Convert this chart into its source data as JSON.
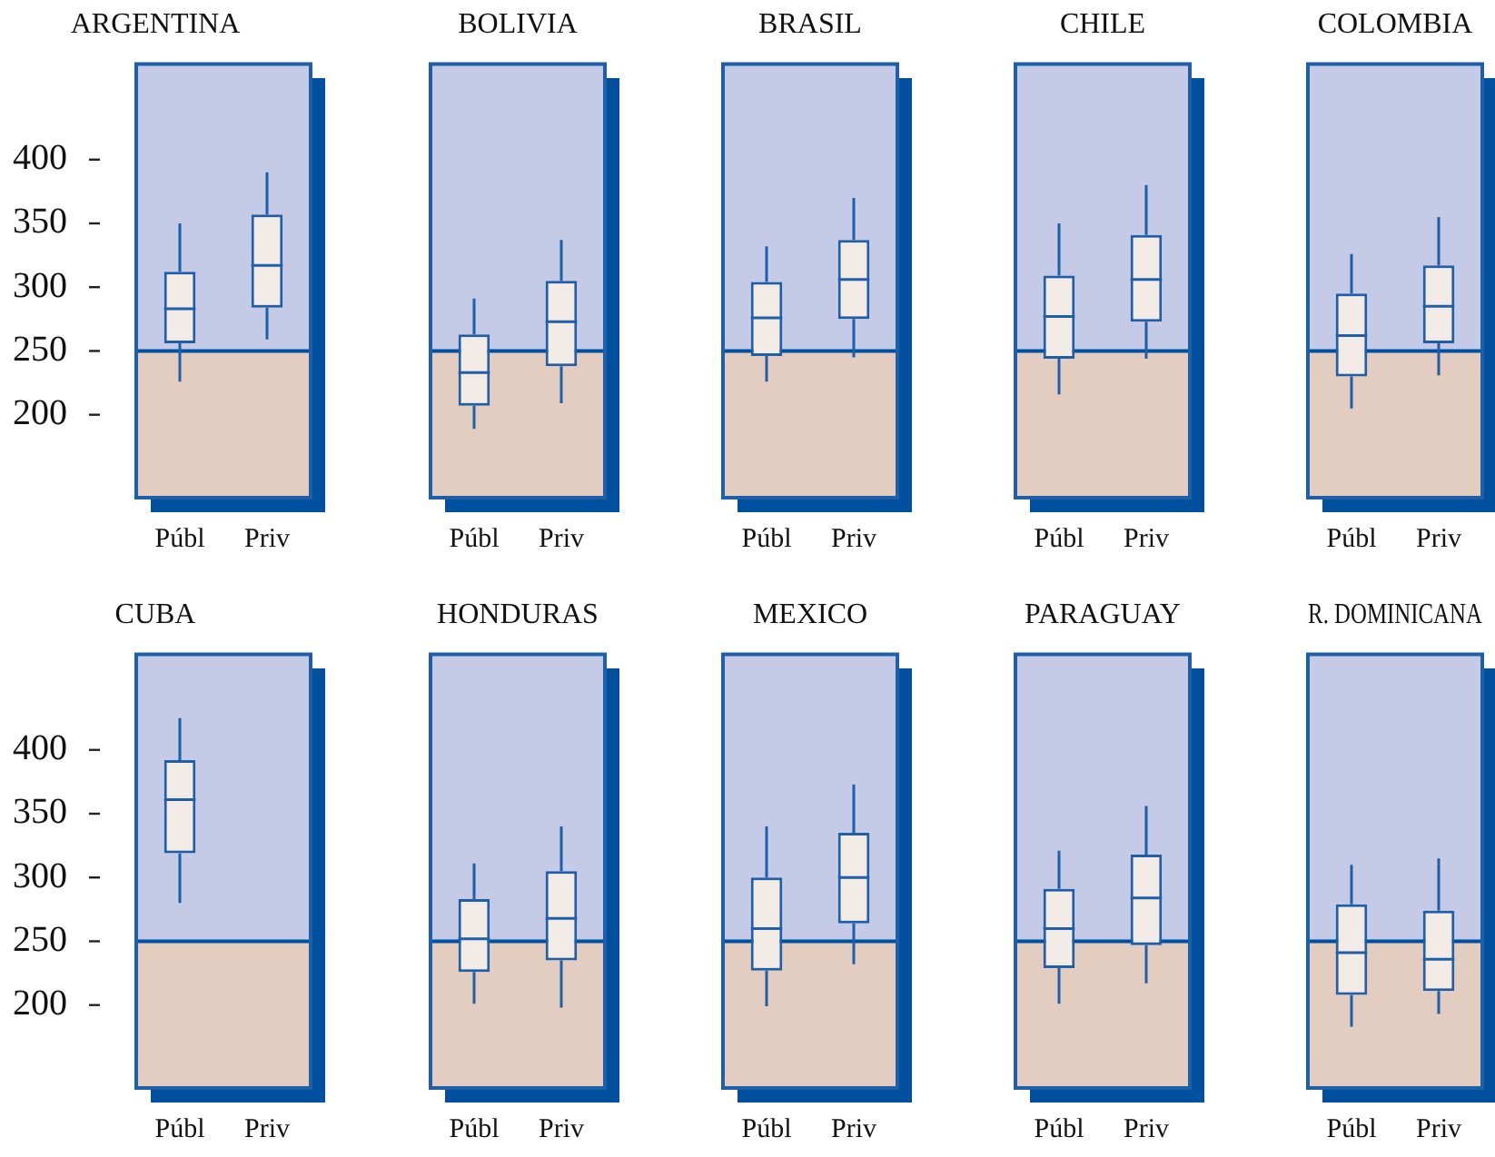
{
  "chart_data": [
    {
      "type": "box",
      "title": "ARGENTINA",
      "categories": [
        "Públ",
        "Priv"
      ],
      "color": "#1f5fa8",
      "ylim": [
        135,
        475
      ],
      "yticks": [
        200,
        250,
        300,
        350,
        400
      ],
      "bands": [
        {
          "axis": "y",
          "from": 135,
          "to": 250,
          "color": "#e2cdc0"
        },
        {
          "axis": "y",
          "from": 250,
          "to": 475,
          "color": "#c5cae6"
        }
      ],
      "ref_lines": [
        {
          "axis": "y",
          "value": 250,
          "color": "#0050a0"
        }
      ],
      "boxes": [
        {
          "low": 226,
          "q1": 256,
          "median": 283,
          "q3": 312,
          "high": 350
        },
        {
          "low": 259,
          "q1": 284,
          "median": 317,
          "q3": 357,
          "high": 390
        }
      ]
    },
    {
      "type": "box",
      "title": "BOLIVIA",
      "categories": [
        "Públ",
        "Priv"
      ],
      "color": "#1f5fa8",
      "ylim": [
        135,
        475
      ],
      "yticks": [
        200,
        250,
        300,
        350,
        400
      ],
      "tick_labels": "x",
      "bands": [
        {
          "axis": "y",
          "from": 135,
          "to": 250,
          "color": "#e2cdc0"
        },
        {
          "axis": "y",
          "from": 250,
          "to": 475,
          "color": "#c5cae6"
        }
      ],
      "ref_lines": [
        {
          "axis": "y",
          "value": 250,
          "color": "#0050a0"
        }
      ],
      "boxes": [
        {
          "low": 189,
          "q1": 207,
          "median": 233,
          "q3": 263,
          "high": 291
        },
        {
          "low": 209,
          "q1": 238,
          "median": 273,
          "q3": 305,
          "high": 337
        }
      ]
    },
    {
      "type": "box",
      "title": "BRASIL",
      "categories": [
        "Públ",
        "Priv"
      ],
      "color": "#1f5fa8",
      "ylim": [
        135,
        475
      ],
      "yticks": [
        200,
        250,
        300,
        350,
        400
      ],
      "tick_labels": "x",
      "bands": [
        {
          "axis": "y",
          "from": 135,
          "to": 250,
          "color": "#e2cdc0"
        },
        {
          "axis": "y",
          "from": 250,
          "to": 475,
          "color": "#c5cae6"
        }
      ],
      "ref_lines": [
        {
          "axis": "y",
          "value": 250,
          "color": "#0050a0"
        }
      ],
      "boxes": [
        {
          "low": 226,
          "q1": 246,
          "median": 276,
          "q3": 304,
          "high": 332
        },
        {
          "low": 245,
          "q1": 275,
          "median": 306,
          "q3": 337,
          "high": 370
        }
      ]
    },
    {
      "type": "box",
      "title": "CHILE",
      "categories": [
        "Públ",
        "Priv"
      ],
      "color": "#1f5fa8",
      "ylim": [
        135,
        475
      ],
      "yticks": [
        200,
        250,
        300,
        350,
        400
      ],
      "tick_labels": "x",
      "bands": [
        {
          "axis": "y",
          "from": 135,
          "to": 250,
          "color": "#e2cdc0"
        },
        {
          "axis": "y",
          "from": 250,
          "to": 475,
          "color": "#c5cae6"
        }
      ],
      "ref_lines": [
        {
          "axis": "y",
          "value": 250,
          "color": "#0050a0"
        }
      ],
      "boxes": [
        {
          "low": 216,
          "q1": 244,
          "median": 277,
          "q3": 309,
          "high": 350
        },
        {
          "low": 244,
          "q1": 273,
          "median": 306,
          "q3": 341,
          "high": 380
        }
      ]
    },
    {
      "type": "box",
      "title": "COLOMBIA",
      "categories": [
        "Públ",
        "Priv"
      ],
      "color": "#1f5fa8",
      "ylim": [
        135,
        475
      ],
      "yticks": [
        200,
        250,
        300,
        350,
        400
      ],
      "tick_labels": "x",
      "bands": [
        {
          "axis": "y",
          "from": 135,
          "to": 250,
          "color": "#e2cdc0"
        },
        {
          "axis": "y",
          "from": 250,
          "to": 475,
          "color": "#c5cae6"
        }
      ],
      "ref_lines": [
        {
          "axis": "y",
          "value": 250,
          "color": "#0050a0"
        }
      ],
      "boxes": [
        {
          "low": 205,
          "q1": 230,
          "median": 262,
          "q3": 295,
          "high": 326
        },
        {
          "low": 231,
          "q1": 256,
          "median": 285,
          "q3": 317,
          "high": 355
        }
      ]
    },
    {
      "type": "box",
      "title": "CUBA",
      "categories": [
        "Públ",
        "Priv"
      ],
      "color": "#1f5fa8",
      "ylim": [
        135,
        475
      ],
      "yticks": [
        200,
        250,
        300,
        350,
        400
      ],
      "bands": [
        {
          "axis": "y",
          "from": 135,
          "to": 250,
          "color": "#e2cdc0"
        },
        {
          "axis": "y",
          "from": 250,
          "to": 475,
          "color": "#c5cae6"
        }
      ],
      "ref_lines": [
        {
          "axis": "y",
          "value": 250,
          "color": "#0050a0"
        }
      ],
      "boxes": [
        {
          "low": 280,
          "q1": 319,
          "median": 361,
          "q3": 392,
          "high": 425
        },
        null
      ]
    },
    {
      "type": "box",
      "title": "HONDURAS",
      "categories": [
        "Públ",
        "Priv"
      ],
      "color": "#1f5fa8",
      "ylim": [
        135,
        475
      ],
      "yticks": [
        200,
        250,
        300,
        350,
        400
      ],
      "tick_labels": "x",
      "bands": [
        {
          "axis": "y",
          "from": 135,
          "to": 250,
          "color": "#e2cdc0"
        },
        {
          "axis": "y",
          "from": 250,
          "to": 475,
          "color": "#c5cae6"
        }
      ],
      "ref_lines": [
        {
          "axis": "y",
          "value": 250,
          "color": "#0050a0"
        }
      ],
      "boxes": [
        {
          "low": 201,
          "q1": 226,
          "median": 252,
          "q3": 283,
          "high": 311
        },
        {
          "low": 198,
          "q1": 235,
          "median": 268,
          "q3": 305,
          "high": 340
        }
      ]
    },
    {
      "type": "box",
      "title": "MEXICO",
      "categories": [
        "Públ",
        "Priv"
      ],
      "color": "#1f5fa8",
      "ylim": [
        135,
        475
      ],
      "yticks": [
        200,
        250,
        300,
        350,
        400
      ],
      "tick_labels": "x",
      "bands": [
        {
          "axis": "y",
          "from": 135,
          "to": 250,
          "color": "#e2cdc0"
        },
        {
          "axis": "y",
          "from": 250,
          "to": 475,
          "color": "#c5cae6"
        }
      ],
      "ref_lines": [
        {
          "axis": "y",
          "value": 250,
          "color": "#0050a0"
        }
      ],
      "boxes": [
        {
          "low": 199,
          "q1": 227,
          "median": 260,
          "q3": 300,
          "high": 340
        },
        {
          "low": 232,
          "q1": 264,
          "median": 300,
          "q3": 335,
          "high": 373
        }
      ]
    },
    {
      "type": "box",
      "title": "PARAGUAY",
      "categories": [
        "Públ",
        "Priv"
      ],
      "color": "#1f5fa8",
      "ylim": [
        135,
        475
      ],
      "yticks": [
        200,
        250,
        300,
        350,
        400
      ],
      "tick_labels": "x",
      "bands": [
        {
          "axis": "y",
          "from": 135,
          "to": 250,
          "color": "#e2cdc0"
        },
        {
          "axis": "y",
          "from": 250,
          "to": 475,
          "color": "#c5cae6"
        }
      ],
      "ref_lines": [
        {
          "axis": "y",
          "value": 250,
          "color": "#0050a0"
        }
      ],
      "boxes": [
        {
          "low": 201,
          "q1": 229,
          "median": 260,
          "q3": 291,
          "high": 321
        },
        {
          "low": 217,
          "q1": 247,
          "median": 284,
          "q3": 318,
          "high": 356
        }
      ]
    },
    {
      "type": "box",
      "title": "R. DOMINICANA",
      "categories": [
        "Públ",
        "Priv"
      ],
      "color": "#1f5fa8",
      "ylim": [
        135,
        475
      ],
      "yticks": [
        200,
        250,
        300,
        350,
        400
      ],
      "tick_labels": "x",
      "bands": [
        {
          "axis": "y",
          "from": 135,
          "to": 250,
          "color": "#e2cdc0"
        },
        {
          "axis": "y",
          "from": 250,
          "to": 475,
          "color": "#c5cae6"
        }
      ],
      "ref_lines": [
        {
          "axis": "y",
          "value": 250,
          "color": "#0050a0"
        }
      ],
      "boxes": [
        {
          "low": 183,
          "q1": 208,
          "median": 241,
          "q3": 279,
          "high": 310
        },
        {
          "low": 193,
          "q1": 211,
          "median": 236,
          "q3": 274,
          "high": 315
        }
      ]
    }
  ]
}
